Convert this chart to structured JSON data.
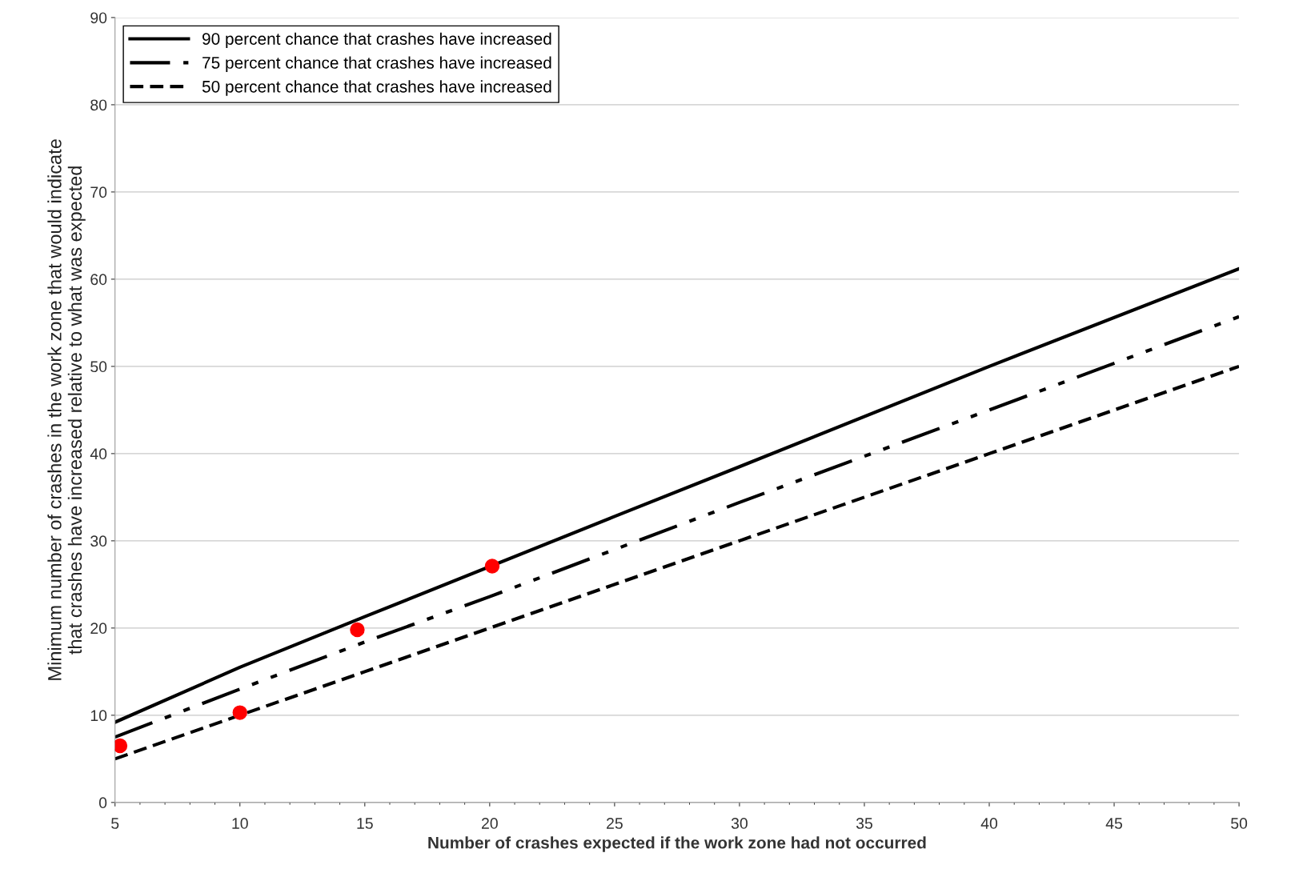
{
  "chart_data": {
    "type": "line",
    "xlabel": "Number of crashes expected if the work zone had not occurred",
    "ylabel": "Minimum number of crashes in the work zone that would indicate\nthat crashes have increased relative to what was expected",
    "series": [
      {
        "name": "90 percent chance that crashes have increased",
        "color": "#000000",
        "line_style": "solid",
        "x": [
          5,
          10,
          15,
          25,
          30,
          40,
          50
        ],
        "values": [
          9.2,
          15.5,
          21.3,
          32.8,
          38.5,
          50,
          61.2
        ]
      },
      {
        "name": "75 percent chance that crashes have increased",
        "color": "#000000",
        "line_style": "dashdot",
        "x": [
          5,
          10,
          15,
          20,
          30,
          40,
          50
        ],
        "values": [
          7.5,
          13,
          18.4,
          23.6,
          34.4,
          45,
          55.7
        ]
      },
      {
        "name": "50 percent chance that crashes have increased",
        "color": "#000000",
        "line_style": "dashed",
        "x": [
          5,
          15,
          20,
          30,
          40,
          50
        ],
        "values": [
          5,
          15,
          20,
          30,
          40,
          50
        ]
      },
      {
        "type": "scatter",
        "color": "#ff0000",
        "marker": "circle",
        "x": [
          5.2,
          10,
          14.7,
          20.1
        ],
        "values": [
          6.5,
          10.3,
          19.8,
          27.1
        ]
      }
    ],
    "xlim": [
      5,
      50
    ],
    "xticks": [
      5,
      10,
      15,
      20,
      25,
      30,
      35,
      40,
      45,
      50
    ],
    "ylim": [
      0,
      90
    ],
    "yticks": [
      0,
      10,
      20,
      30,
      40,
      50,
      60,
      70,
      80,
      90
    ],
    "grid": "y",
    "legend": "top left"
  }
}
